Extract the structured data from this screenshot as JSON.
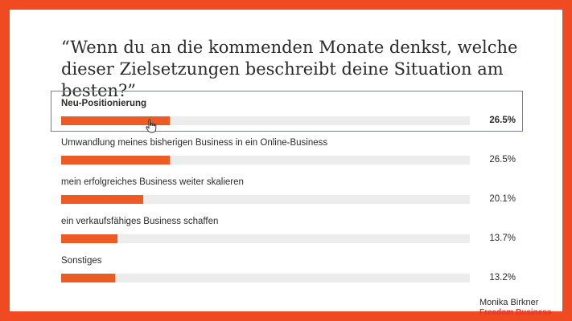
{
  "question": "“Wenn du an die kommenden Monate denkst, welche dieser Zielsetzungen beschreibt deine Situation am besten?”",
  "chart_data": {
    "type": "bar",
    "orientation": "horizontal",
    "categories": [
      "Neu-Positionierung",
      "Umwandlung meines bisherigen Business in ein Online-Business",
      "mein erfolgreiches Business weiter skalieren",
      "ein verkaufsfähiges Business schaffen",
      "Sonstiges"
    ],
    "values": [
      26.5,
      26.5,
      20.1,
      13.7,
      13.2
    ],
    "value_labels": [
      "26.5%",
      "26.5%",
      "20.1%",
      "13.7%",
      "13.2%"
    ],
    "selected_index": 0,
    "xlim": [
      0,
      100
    ],
    "bar_color": "#ee5a24",
    "track_color": "#ececec"
  },
  "brand": {
    "name": "Monika Birkner",
    "sub": "Freedom Business"
  },
  "colors": {
    "background": "#f04a23",
    "selection_border": "#3a99a8"
  }
}
